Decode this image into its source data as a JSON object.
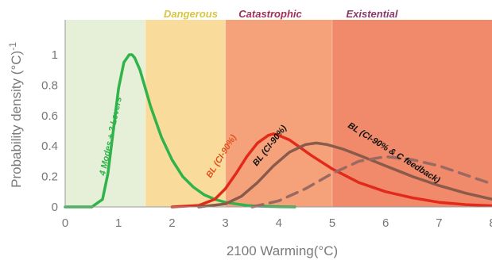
{
  "chart_data": {
    "type": "line",
    "xlabel": "2100 Warming(°C)",
    "ylabel": "Probability density (°C)",
    "ylabel_exponent": "-1",
    "xlim": [
      0,
      8
    ],
    "ylim": [
      0,
      1.2
    ],
    "x_ticks": [
      0,
      1,
      2,
      3,
      4,
      5,
      6,
      7,
      8
    ],
    "y_ticks": [
      0,
      0.2,
      0.4,
      0.6,
      0.8,
      1
    ],
    "x_tick_labels": [
      "0",
      "1",
      "2",
      "3",
      "4",
      "5",
      "6",
      "7",
      "8"
    ],
    "y_tick_labels": [
      "0",
      "0.2",
      "0.4",
      "0.6",
      "0.8",
      "1"
    ],
    "grid": false,
    "zones": [
      {
        "label": "",
        "from": 0,
        "to": 1.5,
        "color": "#e6f0d8"
      },
      {
        "label": "Dangerous",
        "from": 1.5,
        "to": 3.0,
        "color": "#f9dc9c",
        "label_color": "#d8c640"
      },
      {
        "label": "Catastrophic",
        "from": 3.0,
        "to": 5.0,
        "color": "#f5a27a",
        "label_color": "#a0305a"
      },
      {
        "label": "Existential",
        "from": 5.0,
        "to": 8.0,
        "color": "#f08a6a",
        "label_color": "#8a3a6a"
      }
    ],
    "series": [
      {
        "name": "4 Modes + 2 Levers",
        "color": "#2fb34a",
        "dash": false,
        "x": [
          0,
          0.5,
          0.7,
          0.8,
          0.9,
          1.0,
          1.1,
          1.2,
          1.25,
          1.3,
          1.4,
          1.5,
          1.6,
          1.8,
          2.0,
          2.2,
          2.4,
          2.6,
          2.8,
          3.0,
          3.2,
          3.4,
          3.6,
          4.0,
          4.3
        ],
        "values": [
          0,
          0,
          0.05,
          0.22,
          0.5,
          0.78,
          0.95,
          1.0,
          1.0,
          0.98,
          0.9,
          0.78,
          0.66,
          0.46,
          0.31,
          0.2,
          0.13,
          0.08,
          0.05,
          0.03,
          0.02,
          0.01,
          0.005,
          0.001,
          0
        ]
      },
      {
        "name": "BL (CI-90%)",
        "color": "#e22a1c",
        "dash": false,
        "x": [
          2.0,
          2.5,
          2.8,
          3.0,
          3.2,
          3.4,
          3.6,
          3.8,
          3.9,
          4.0,
          4.2,
          4.4,
          4.6,
          5.0,
          5.5,
          6.0,
          6.5,
          7.0,
          7.5,
          8.0
        ],
        "values": [
          0,
          0.01,
          0.05,
          0.12,
          0.22,
          0.33,
          0.42,
          0.47,
          0.48,
          0.47,
          0.44,
          0.39,
          0.34,
          0.25,
          0.16,
          0.1,
          0.06,
          0.03,
          0.015,
          0.008
        ]
      },
      {
        "name": "BL (CI-90%)",
        "color": "#8a5a4a",
        "dash": false,
        "x": [
          2.5,
          3.0,
          3.3,
          3.6,
          3.9,
          4.2,
          4.5,
          4.7,
          4.9,
          5.2,
          5.5,
          6.0,
          6.5,
          7.0,
          7.5,
          8.0
        ],
        "values": [
          0,
          0.02,
          0.07,
          0.16,
          0.27,
          0.36,
          0.41,
          0.42,
          0.41,
          0.38,
          0.34,
          0.27,
          0.2,
          0.14,
          0.09,
          0.05
        ]
      },
      {
        "name": "BL (CI-90% & C feedback)",
        "color": "#9a6a62",
        "dash": true,
        "x": [
          3.5,
          4.0,
          4.5,
          5.0,
          5.5,
          6.0,
          6.5,
          7.0,
          7.5,
          8.0
        ],
        "values": [
          0,
          0.04,
          0.12,
          0.22,
          0.3,
          0.33,
          0.31,
          0.27,
          0.21,
          0.15
        ]
      }
    ],
    "curve_labels": [
      {
        "text": "4 Modes + 2 Levers",
        "color": "#2fb34a"
      },
      {
        "text": "BL (CI-90%)",
        "color": "#e0521e"
      },
      {
        "text": "BL (CI-90%)",
        "color": "#111111"
      },
      {
        "text": "BL (CI-90% & C feedback)",
        "color": "#111111"
      }
    ]
  }
}
